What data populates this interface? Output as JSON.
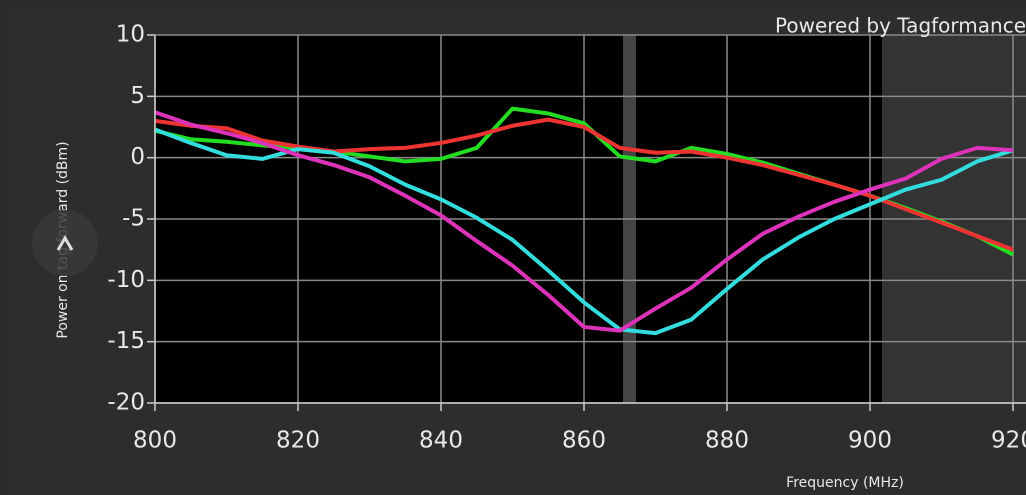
{
  "chart_data": {
    "type": "line",
    "annotation": "Powered by Tagformance",
    "xlabel": "Frequency (MHz)",
    "ylabel": "Power on tag forward (dBm)",
    "x": [
      800,
      805,
      810,
      815,
      820,
      825,
      830,
      835,
      840,
      845,
      850,
      855,
      860,
      865,
      870,
      875,
      880,
      885,
      890,
      895,
      900,
      905,
      910,
      915,
      920
    ],
    "series": [
      {
        "color": "#22dd22",
        "values": [
          2.2,
          1.5,
          1.3,
          1.0,
          0.8,
          0.5,
          0.1,
          -0.3,
          -0.1,
          0.8,
          4.0,
          3.6,
          2.8,
          0.1,
          -0.3,
          0.8,
          0.3,
          -0.4,
          -1.3,
          -2.2,
          -3.1,
          -4.1,
          -5.2,
          -6.4,
          -7.9
        ]
      },
      {
        "color": "#ee3333",
        "values": [
          3.0,
          2.6,
          2.4,
          1.4,
          0.9,
          0.5,
          0.7,
          0.8,
          1.2,
          1.8,
          2.6,
          3.1,
          2.5,
          0.8,
          0.4,
          0.5,
          0.0,
          -0.6,
          -1.4,
          -2.2,
          -3.1,
          -4.2,
          -5.3,
          -6.4,
          -7.5
        ]
      },
      {
        "color": "#33dddd",
        "values": [
          2.3,
          1.2,
          0.2,
          -0.1,
          0.7,
          0.4,
          -0.7,
          -2.2,
          -3.4,
          -4.9,
          -6.7,
          -9.2,
          -11.8,
          -14.0,
          -14.3,
          -13.2,
          -10.7,
          -8.3,
          -6.5,
          -5.0,
          -3.8,
          -2.6,
          -1.8,
          -0.3,
          0.6
        ]
      },
      {
        "color": "#dd33bb",
        "values": [
          3.7,
          2.7,
          2.0,
          1.2,
          0.2,
          -0.6,
          -1.6,
          -3.1,
          -4.7,
          -6.8,
          -8.8,
          -11.2,
          -13.8,
          -14.1,
          -12.3,
          -10.6,
          -8.3,
          -6.2,
          -4.8,
          -3.6,
          -2.6,
          -1.7,
          -0.1,
          0.8,
          0.6
        ]
      }
    ],
    "xlim": [
      800,
      920
    ],
    "xticks": [
      800,
      820,
      840,
      860,
      880,
      900,
      920
    ],
    "ylim": [
      -20,
      10
    ],
    "yticks": [
      -20,
      -15,
      -10,
      -5,
      0,
      5,
      10
    ],
    "grid": true
  }
}
